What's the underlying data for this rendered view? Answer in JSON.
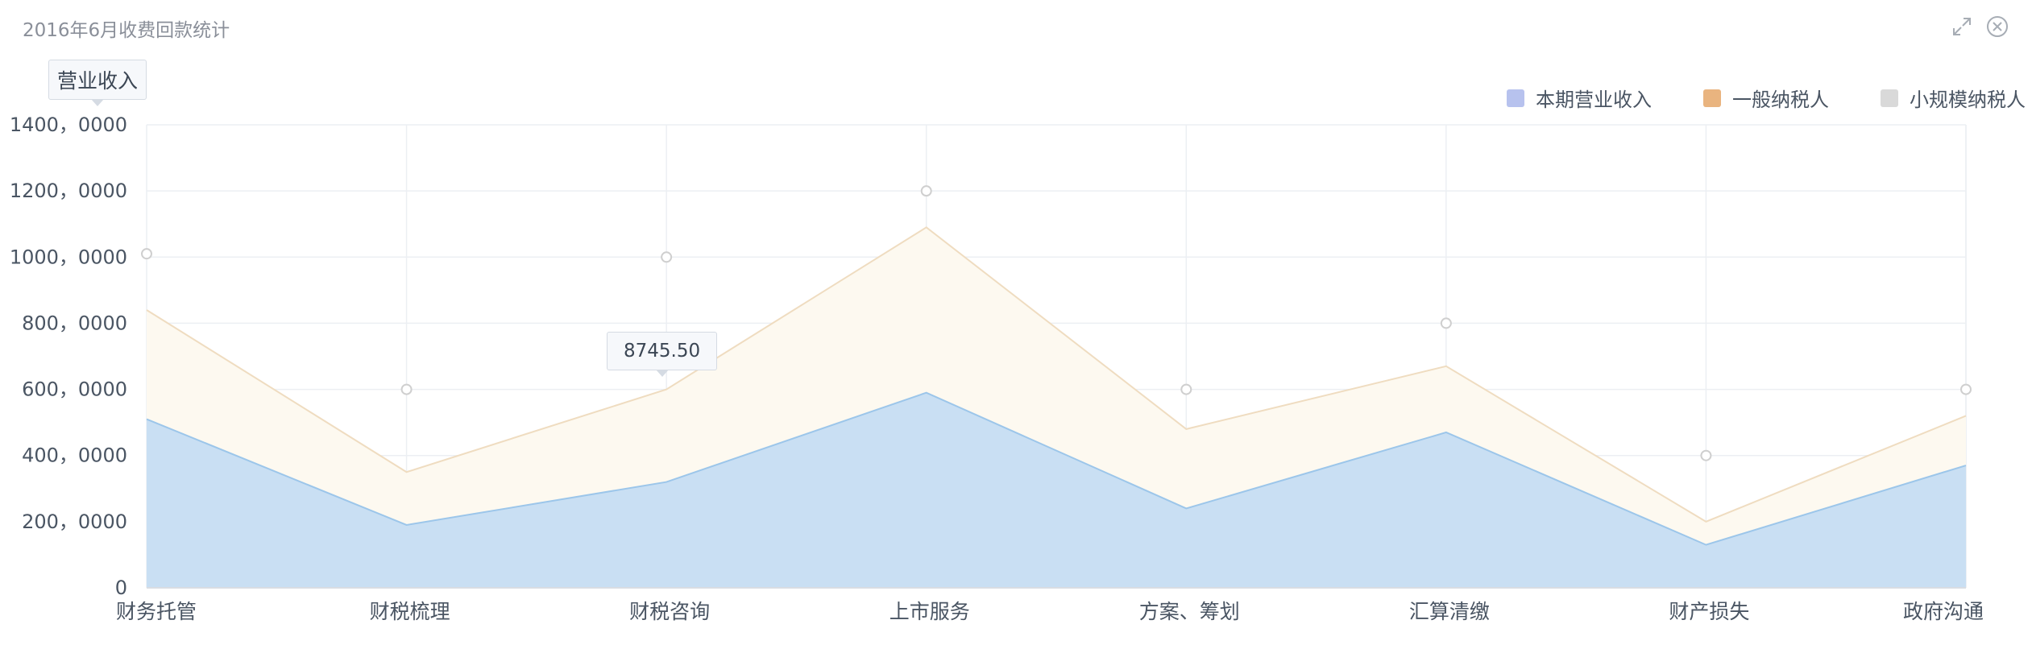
{
  "panel": {
    "title": "2016年6月收费回款统计",
    "icons": [
      "expand-icon",
      "close-icon"
    ]
  },
  "unit_tag": "营业收入",
  "tooltip": {
    "value": "8745.50"
  },
  "colors": {
    "series1": "#b7c2ee",
    "series2": "#e9b47f",
    "series3": "#d9d9d9",
    "area_blue": "#c9dff3",
    "line_blue": "#9cc6ea",
    "area_cream": "#fdf9f0",
    "line_cream": "#efdcc0",
    "grid": "#eceff3",
    "marker": "#cfcfcf"
  },
  "chart_data": {
    "type": "area",
    "title": "2016年6月收费回款统计",
    "ylabel": "营业收入",
    "categories": [
      "财务托管",
      "财税梳理",
      "财税咨询",
      "上市服务",
      "方案、筹划",
      "汇算清缴",
      "财产损失",
      "政府沟通"
    ],
    "y_tick_labels": [
      "0",
      "200，0000",
      "400，0000",
      "600，0000",
      "800，0000",
      "1000，0000",
      "1200，0000",
      "1400，0000"
    ],
    "ylim": [
      0,
      14000000
    ],
    "grid": true,
    "legend_position": "top-right",
    "series": [
      {
        "name": "本期营业收入",
        "values": [
          5100000,
          1900000,
          3200000,
          5900000,
          2400000,
          4700000,
          1300000,
          3700000
        ]
      },
      {
        "name": "一般纳税人",
        "values": [
          8400000,
          3500000,
          6000000,
          10900000,
          4800000,
          6700000,
          2000000,
          5200000
        ]
      },
      {
        "name": "小规模纳税人",
        "values": [
          10100000,
          6000000,
          10000000,
          12000000,
          6000000,
          8000000,
          4000000,
          6000000
        ]
      }
    ]
  }
}
